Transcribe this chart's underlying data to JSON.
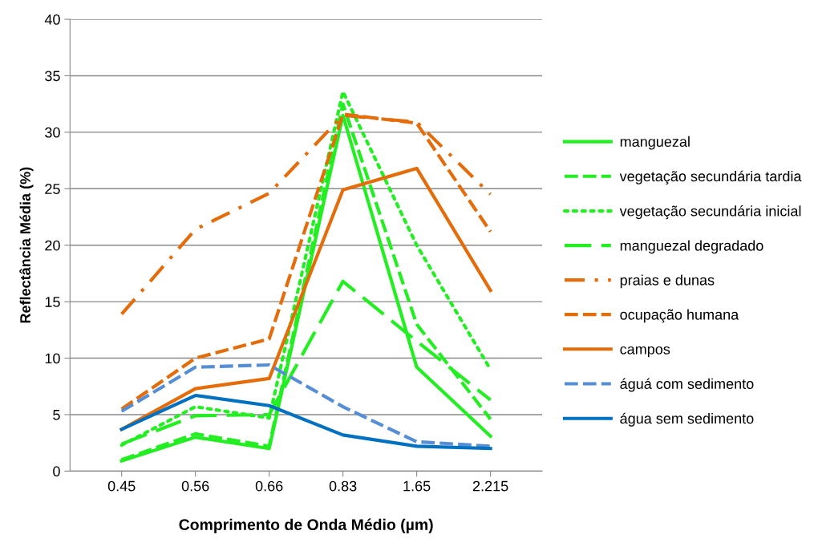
{
  "chart_data": {
    "type": "line",
    "xlabel": "Comprimento de Onda Médio (µm)",
    "ylabel": "Reflectância Média (%)",
    "categories": [
      "0.45",
      "0.56",
      "0.66",
      "0.83",
      "1.65",
      "2.215"
    ],
    "ylim": [
      0,
      40
    ],
    "yticks": [
      0,
      5,
      10,
      15,
      20,
      25,
      30,
      35,
      40
    ],
    "grid": "y",
    "legend": "right",
    "marker": "none",
    "series": [
      {
        "name": "manguezal",
        "color": "#22ee22",
        "line_style": "solid",
        "values": [
          0.9,
          3.0,
          2.0,
          31.5,
          9.2,
          3.1
        ]
      },
      {
        "name": "vegetação secundária tardia",
        "color": "#22ee22",
        "line_style": "dashed",
        "values": [
          1.0,
          3.3,
          2.2,
          32.5,
          13.0,
          4.6
        ]
      },
      {
        "name": "vegetação secundária inicial",
        "color": "#22ee22",
        "line_style": "dotted",
        "values": [
          2.3,
          5.7,
          4.7,
          33.6,
          20.0,
          9.0
        ]
      },
      {
        "name": "manguezal degradado",
        "color": "#22ee22",
        "line_style": "longdash",
        "values": [
          2.4,
          4.9,
          5.0,
          16.8,
          11.5,
          6.3
        ]
      },
      {
        "name": "praias e dunas",
        "color": "#e46c0a",
        "line_style": "dashdot",
        "values": [
          13.9,
          21.4,
          24.6,
          31.5,
          30.9,
          24.5
        ]
      },
      {
        "name": "ocupação humana",
        "color": "#e46c0a",
        "line_style": "dashed",
        "values": [
          5.5,
          10.0,
          11.7,
          31.6,
          30.8,
          21.2
        ]
      },
      {
        "name": "campos",
        "color": "#e46c0a",
        "line_style": "solid",
        "values": [
          3.7,
          7.3,
          8.2,
          24.9,
          26.8,
          16.0
        ]
      },
      {
        "name": "águá com sedimento",
        "color": "#558ed5",
        "line_style": "dashed",
        "values": [
          5.3,
          9.2,
          9.4,
          5.7,
          2.6,
          2.2
        ]
      },
      {
        "name": "água sem sedimento",
        "color": "#0070c0",
        "line_style": "solid",
        "values": [
          3.7,
          6.7,
          5.8,
          3.2,
          2.2,
          2.0
        ]
      }
    ]
  }
}
